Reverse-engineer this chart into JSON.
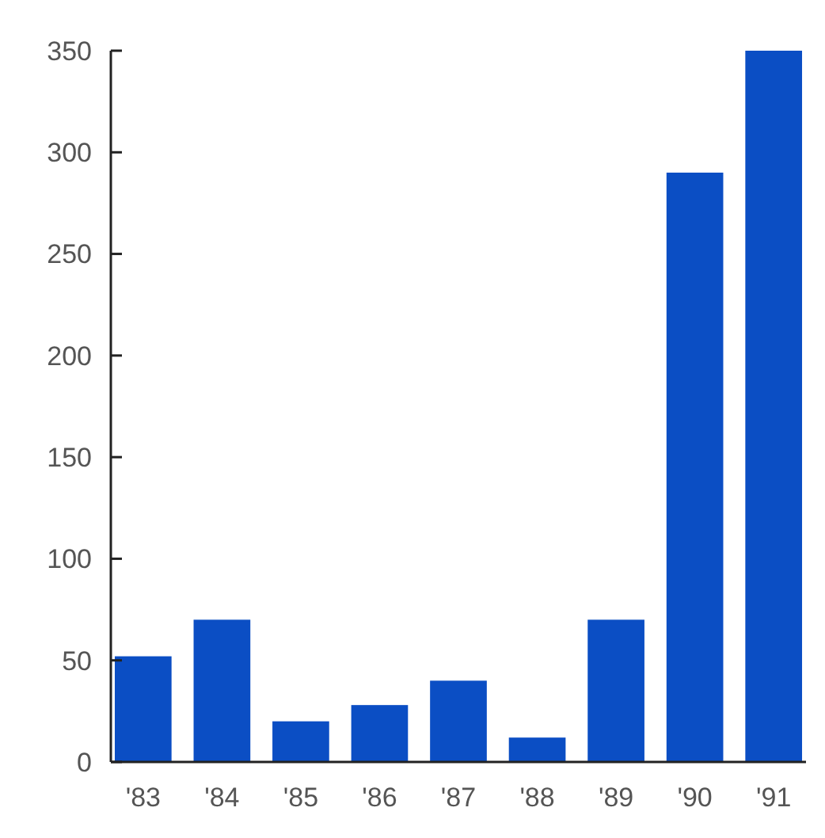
{
  "chart_data": {
    "type": "bar",
    "categories": [
      "'83",
      "'84",
      "'85",
      "'86",
      "'87",
      "'88",
      "'89",
      "'90",
      "'91"
    ],
    "values": [
      52,
      70,
      20,
      28,
      40,
      12,
      70,
      290,
      350
    ],
    "color": "#0b4ec4",
    "ylim": [
      0,
      350
    ],
    "yticks": [
      0,
      50,
      100,
      150,
      200,
      250,
      300,
      350
    ],
    "grid": false
  }
}
